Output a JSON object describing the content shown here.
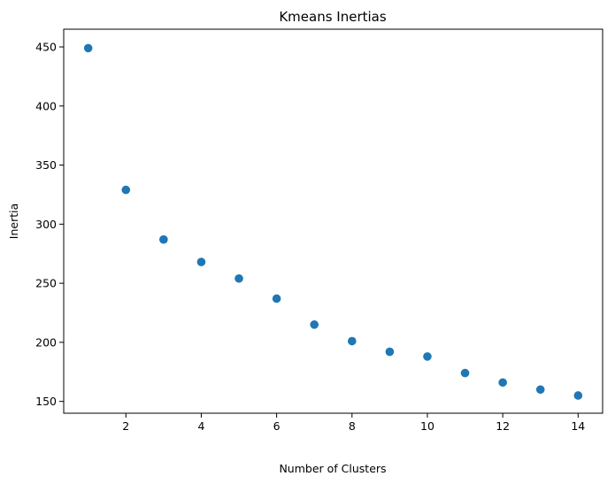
{
  "chart_data": {
    "type": "scatter",
    "title": "Kmeans Inertias",
    "xlabel": "Number of Clusters",
    "ylabel": "Inertia",
    "x": [
      1,
      2,
      3,
      4,
      5,
      6,
      7,
      8,
      9,
      10,
      11,
      12,
      13,
      14
    ],
    "y": [
      449,
      329,
      287,
      268,
      254,
      237,
      215,
      201,
      192,
      188,
      174,
      166,
      160,
      155
    ],
    "xlim": [
      0.35,
      14.65
    ],
    "ylim": [
      140,
      465
    ],
    "xticks": [
      2,
      4,
      6,
      8,
      10,
      12,
      14
    ],
    "xtick_labels": [
      "2",
      "4",
      "6",
      "8",
      "10",
      "12",
      "14"
    ],
    "yticks": [
      150,
      200,
      250,
      300,
      350,
      400,
      450
    ],
    "ytick_labels": [
      "150",
      "200",
      "250",
      "300",
      "350",
      "400",
      "450"
    ],
    "grid": false,
    "legend": "none",
    "marker_color": "#1f77b4"
  }
}
